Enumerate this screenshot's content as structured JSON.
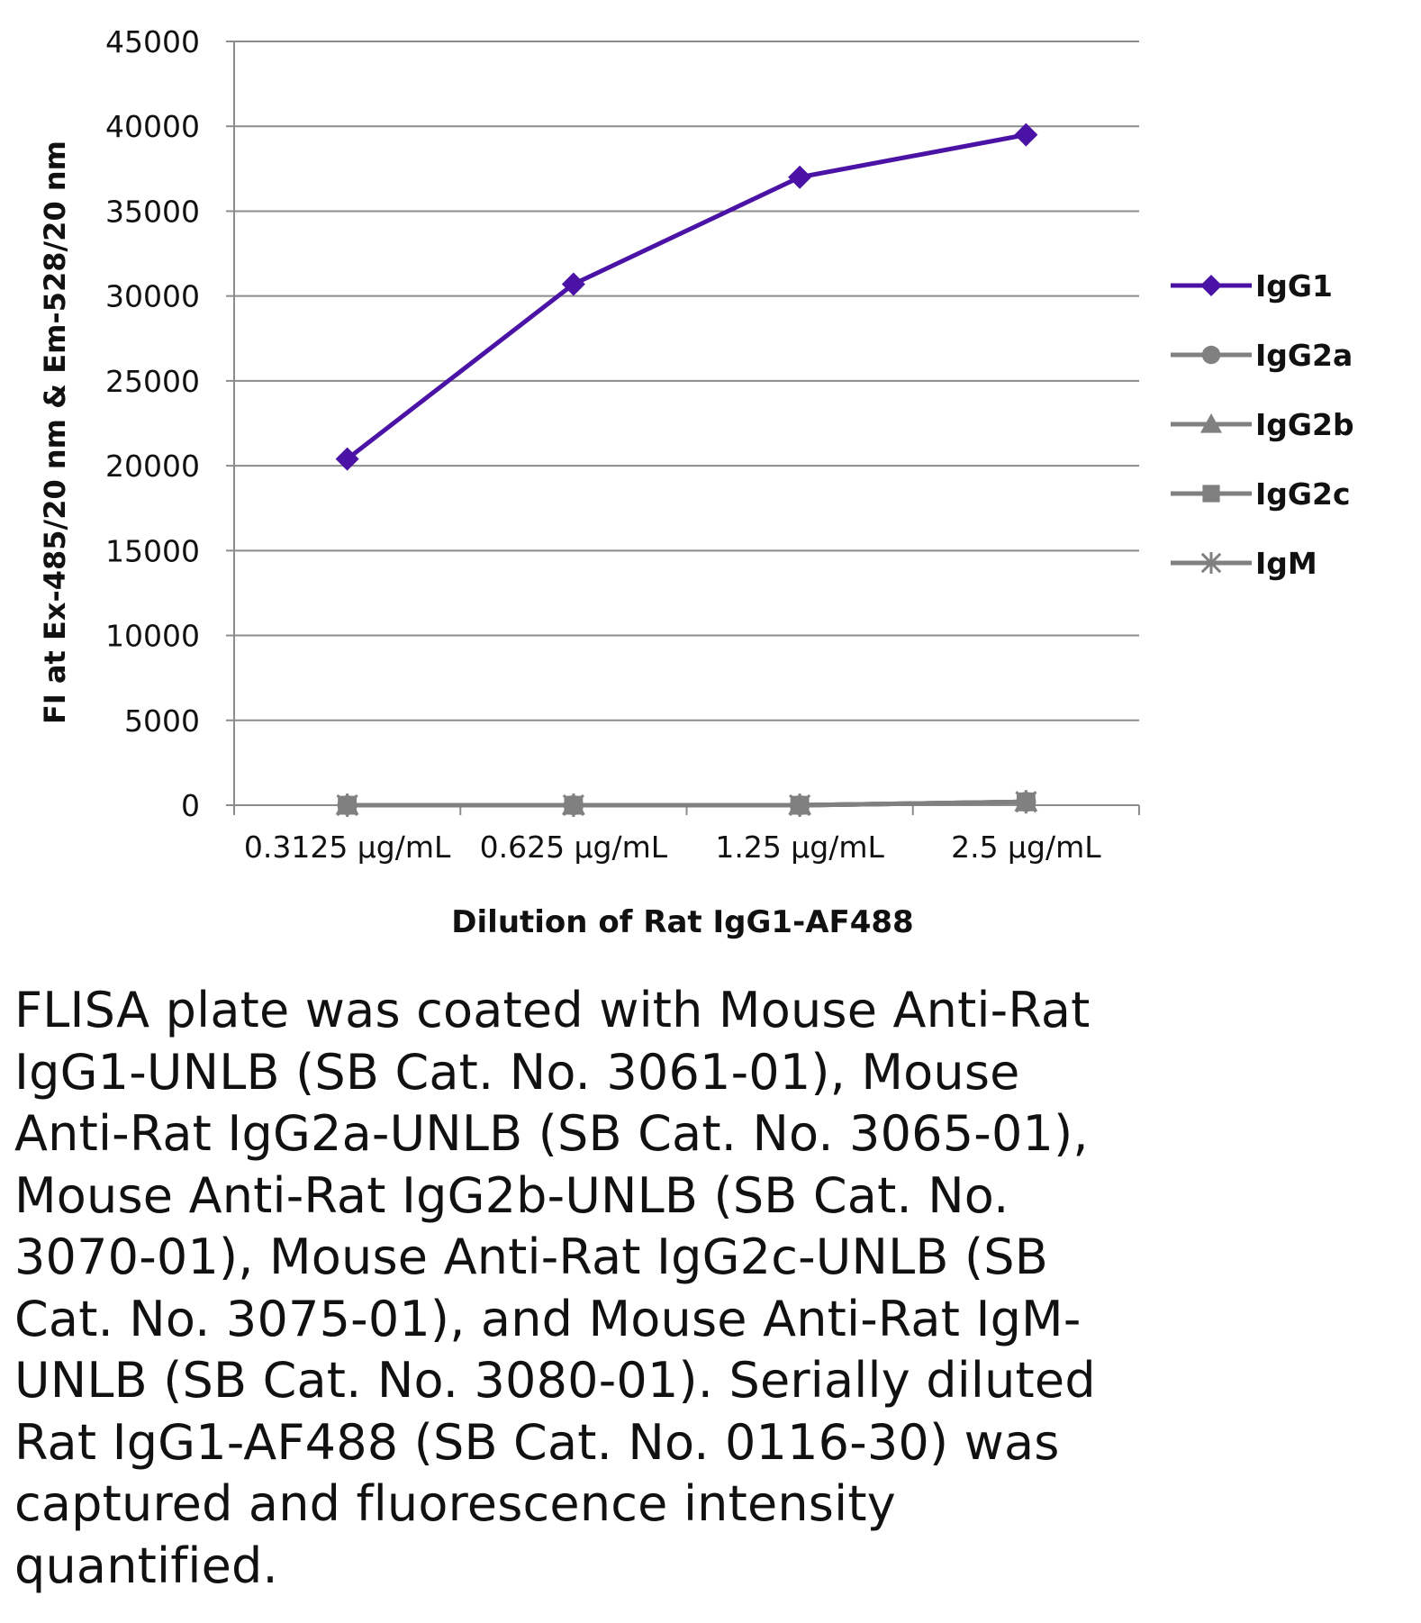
{
  "chart_data": {
    "type": "line",
    "title": "",
    "xlabel": "Dilution of Rat IgG1-AF488",
    "ylabel": "FI at Ex-485/20 nm & Em-528/20 nm",
    "categories": [
      "0.3125 µg/mL",
      "0.625 µg/mL",
      "1.25 µg/mL",
      "2.5 µg/mL"
    ],
    "ylim": [
      0,
      45000
    ],
    "yticks": [
      0,
      5000,
      10000,
      15000,
      20000,
      25000,
      30000,
      35000,
      40000,
      45000
    ],
    "grid": true,
    "legend": "right",
    "series": [
      {
        "name": "IgG1",
        "marker": "diamond",
        "color": "#4b12a6",
        "values": [
          20400,
          30700,
          37000,
          39500
        ]
      },
      {
        "name": "IgG2a",
        "marker": "circle",
        "color": "#808080",
        "values": [
          0,
          0,
          0,
          200
        ]
      },
      {
        "name": "IgG2b",
        "marker": "triangle",
        "color": "#808080",
        "values": [
          0,
          0,
          0,
          200
        ]
      },
      {
        "name": "IgG2c",
        "marker": "square",
        "color": "#808080",
        "values": [
          0,
          0,
          0,
          200
        ]
      },
      {
        "name": "IgM",
        "marker": "star",
        "color": "#808080",
        "values": [
          0,
          0,
          0,
          200
        ]
      }
    ]
  },
  "caption": "FLISA plate was coated with Mouse Anti-Rat IgG1-UNLB (SB Cat. No. 3061-01), Mouse Anti-Rat IgG2a-UNLB (SB Cat. No. 3065-01), Mouse Anti-Rat IgG2b-UNLB (SB Cat. No. 3070-01), Mouse Anti-Rat IgG2c-UNLB (SB Cat. No. 3075-01), and Mouse Anti-Rat IgM-UNLB (SB Cat. No. 3080-01).  Serially diluted Rat IgG1-AF488 (SB Cat. No. 0116-30) was captured and fluorescence intensity quantified."
}
